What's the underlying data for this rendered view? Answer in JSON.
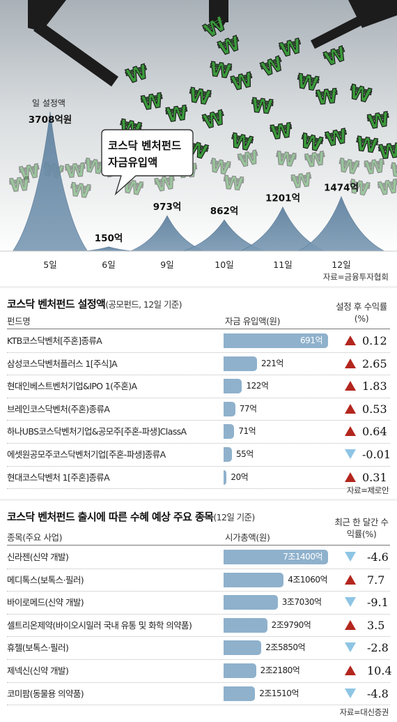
{
  "colors": {
    "peak": "#6f8fac",
    "bar": "#8fb1cc",
    "up": "#b3261e",
    "down": "#8ec5e4",
    "won": "#3b9a3b"
  },
  "hero": {
    "callout_line1": "코스닥 벤처펀드",
    "callout_line2": "자금유입액",
    "first_label_line1": "일 설정액",
    "source": "자료=금융투자협회"
  },
  "chart_data": [
    {
      "type": "area",
      "title": "코스닥 벤처펀드 자금유입액",
      "series_label": "일 설정액",
      "x": [
        "5일",
        "6일",
        "9일",
        "10일",
        "11일",
        "12일"
      ],
      "y": [
        3708,
        150,
        973,
        862,
        1201,
        1474
      ],
      "value_labels": [
        "3708억원",
        "150억",
        "973억",
        "862억",
        "1201억",
        "1474억"
      ],
      "unit": "억원",
      "source": "자료=금융투자협회"
    },
    {
      "type": "bar",
      "title": "코스닥 벤처펀드 설정액",
      "subtitle": "(공모펀드, 12일 기준)",
      "column_headers": [
        "펀드명",
        "자금 유입액(원)",
        "설정 후 수익률(%)"
      ],
      "categories": [
        "KTB코스닥벤처[주혼]종류A",
        "삼성코스닥벤처플러스 1[주식]A",
        "현대인베스트벤처기업&IPO 1(주혼)A",
        "브레인코스닥벤처(주혼)종류A",
        "하나UBS코스닥벤처기업&공모주[주혼-파생]ClassA",
        "에셋원공모주코스닥벤처기업[주혼-파생]종류A",
        "현대코스닥벤처 1[주혼]종류A"
      ],
      "values": [
        691,
        221,
        122,
        77,
        71,
        55,
        20
      ],
      "value_labels": [
        "691억",
        "221억",
        "122억",
        "77억",
        "71억",
        "55억",
        "20억"
      ],
      "returns": [
        0.12,
        2.65,
        1.83,
        0.53,
        0.64,
        -0.01,
        0.31
      ],
      "return_labels": [
        "0.12",
        "2.65",
        "1.83",
        "0.53",
        "0.64",
        "-0.01",
        "0.31"
      ],
      "source": "자료=제로인"
    },
    {
      "type": "bar",
      "title": "코스닥 벤처펀드 출시에 따른 수혜 예상 주요 종목",
      "subtitle": "(12일 기준)",
      "column_headers": [
        "종목(주요 사업)",
        "시가총액(원)",
        "최근 한 달간 수익률(%)"
      ],
      "categories": [
        "신라젠(신약 개발)",
        "메디톡스(보톡스·필러)",
        "바이로메드(신약 개발)",
        "셀트리온제약(바이오시밀러 국내 유통 및 화학 의약품)",
        "휴젤(보톡스·필러)",
        "제넥신(신약 개발)",
        "코미팜(동물용 의약품)"
      ],
      "values": [
        71400,
        41060,
        37030,
        29790,
        25850,
        22180,
        21510
      ],
      "value_labels": [
        "7조1400억",
        "4조1060억",
        "3조7030억",
        "2조9790억",
        "2조5850억",
        "2조2180억",
        "2조1510억"
      ],
      "returns": [
        -4.6,
        7.7,
        -9.1,
        3.5,
        -2.8,
        10.4,
        -4.8
      ],
      "return_labels": [
        "-4.6",
        "7.7",
        "-9.1",
        "3.5",
        "-2.8",
        "10.4",
        "-4.8"
      ],
      "source": "자료=대신증권"
    }
  ]
}
